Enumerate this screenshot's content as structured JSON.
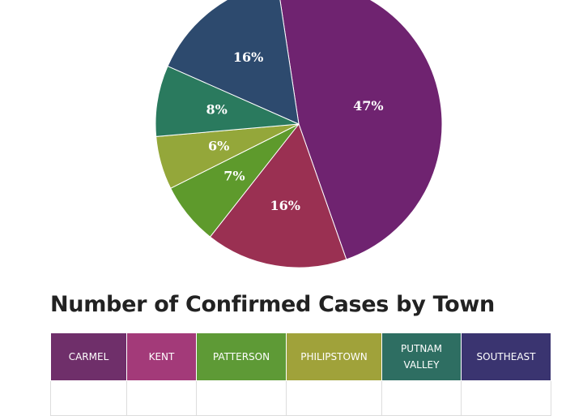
{
  "chart_data": {
    "type": "pie",
    "title": "",
    "slices": [
      {
        "label": "47%",
        "value": 47,
        "color": "#6f2370"
      },
      {
        "label": "16%",
        "value": 16,
        "color": "#9a3052"
      },
      {
        "label": "7%",
        "value": 7,
        "color": "#5e9a2c"
      },
      {
        "label": "6%",
        "value": 6,
        "color": "#94a73a"
      },
      {
        "label": "8%",
        "value": 8,
        "color": "#2a7a5e"
      },
      {
        "label": "16%",
        "value": 16,
        "color": "#2d4a6e"
      }
    ]
  },
  "table": {
    "title": "Number of Confirmed Cases by Town",
    "columns": [
      {
        "name": "CARMEL",
        "color": "#6f2f6a"
      },
      {
        "name": "KENT",
        "color": "#a33a79"
      },
      {
        "name": "PATTERSON",
        "color": "#5e9a36"
      },
      {
        "name": "PHILIPSTOWN",
        "color": "#a0a23a"
      },
      {
        "name": "PUTNAM VALLEY",
        "color": "#2e6e62"
      },
      {
        "name": "SOUTHEAST",
        "color": "#3a3470"
      }
    ]
  }
}
